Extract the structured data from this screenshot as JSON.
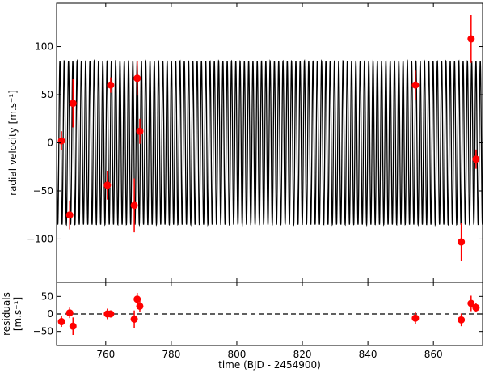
{
  "chart_data": [
    {
      "type": "scatter",
      "panel": "main",
      "title": "",
      "xlabel": "",
      "ylabel": "radial velocity [m.s⁻¹]",
      "xlim": [
        745,
        875
      ],
      "ylim": [
        -145,
        145
      ],
      "grid": false,
      "xticks": [],
      "yticks": [
        -100,
        -50,
        0,
        50,
        100
      ],
      "ytick_labels": [
        "−100",
        "−50",
        "0",
        "50",
        "100"
      ],
      "model_curve": {
        "amplitude": 85,
        "period_days": 1.309,
        "phase_anchor_x": 747.0,
        "color": "#000000"
      },
      "series": [
        {
          "color": "#ff0000",
          "x": [
            746.5,
            749.0,
            750.0,
            760.5,
            761.5,
            768.7,
            769.6,
            770.4,
            854.5,
            868.5,
            871.5,
            873.0
          ],
          "y": [
            2,
            -75,
            41,
            -44,
            60,
            -65,
            67,
            12,
            60,
            -103,
            108,
            -17
          ],
          "yerr": [
            10,
            15,
            25,
            15,
            8,
            28,
            18,
            13,
            15,
            20,
            25,
            10
          ]
        }
      ]
    },
    {
      "type": "scatter",
      "panel": "residuals",
      "title": "",
      "xlabel": "time (BJD - 2454900)",
      "ylabel": "residuals [m.s⁻¹]",
      "ylabel_lines": [
        "residuals",
        "[m.s⁻¹]"
      ],
      "xlim": [
        745,
        875
      ],
      "ylim": [
        -90,
        90
      ],
      "grid": false,
      "xticks": [
        760,
        780,
        800,
        820,
        840,
        860
      ],
      "xtick_labels": [
        "760",
        "780",
        "800",
        "820",
        "840",
        "860"
      ],
      "yticks": [
        -50,
        0,
        50
      ],
      "ytick_labels": [
        "−50",
        "0",
        "50"
      ],
      "zero_line": true,
      "series": [
        {
          "color": "#ff0000",
          "x": [
            746.5,
            749.0,
            750.0,
            760.5,
            761.5,
            768.7,
            769.6,
            770.4,
            854.5,
            868.5,
            871.5,
            873.0
          ],
          "y": [
            -22,
            3,
            -35,
            0,
            0,
            -15,
            42,
            22,
            -12,
            -17,
            30,
            18
          ],
          "yerr": [
            15,
            15,
            25,
            15,
            10,
            25,
            18,
            15,
            18,
            18,
            22,
            12
          ]
        }
      ]
    }
  ]
}
